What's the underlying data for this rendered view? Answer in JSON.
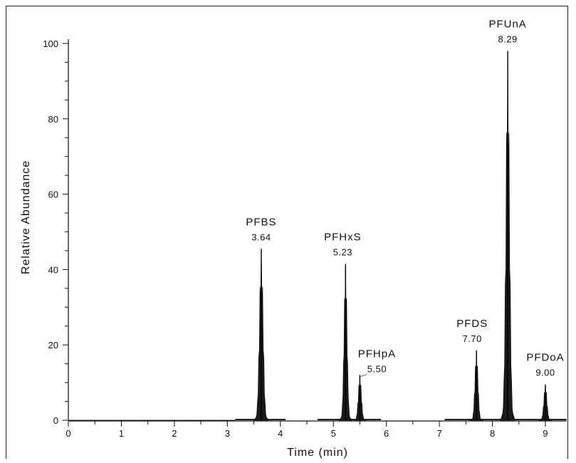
{
  "chart_data": {
    "type": "line",
    "title": "",
    "xlabel": "Time (min)",
    "ylabel": "Relative Abundance",
    "xlim": [
      0,
      9.4
    ],
    "ylim": [
      0,
      100
    ],
    "xticks": [
      "0",
      "1",
      "2",
      "3",
      "4",
      "5",
      "6",
      "7",
      "8",
      "9"
    ],
    "yticks": [
      "0",
      "20",
      "40",
      "60",
      "80",
      "100"
    ],
    "grid": false,
    "series": [
      {
        "values": [
          {
            "rt": 3.64,
            "height": 45.5,
            "width": 0.03
          },
          {
            "rt": 5.23,
            "height": 41.5,
            "width": 0.025
          },
          {
            "rt": 5.5,
            "height": 12,
            "width": 0.025
          },
          {
            "rt": 7.7,
            "height": 18.5,
            "width": 0.025
          },
          {
            "rt": 8.29,
            "height": 98,
            "width": 0.03
          },
          {
            "rt": 9.0,
            "height": 9.5,
            "width": 0.025
          }
        ]
      }
    ],
    "annotations": [
      {
        "name": "PFBS",
        "rt": "3.64"
      },
      {
        "name": "PFHxS",
        "rt": "5.23"
      },
      {
        "name": "PFHpA",
        "rt": "5.50"
      },
      {
        "name": "PFDS",
        "rt": "7.70"
      },
      {
        "name": "PFUnA",
        "rt": "8.29"
      },
      {
        "name": "PFDoA",
        "rt": "9.00"
      }
    ]
  }
}
